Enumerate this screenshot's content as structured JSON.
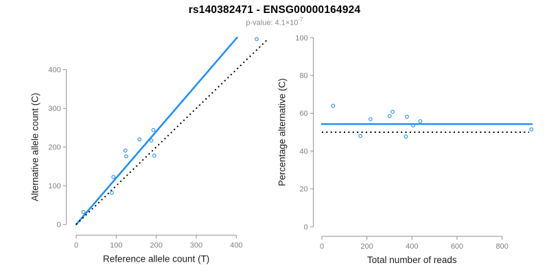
{
  "header": {
    "title": "rs140382471 - ENSG00000164924",
    "subtitle_base": "p-value: 4.1×10",
    "subtitle_exponent": "-7"
  },
  "colors": {
    "accent_blue": "#1E90FF",
    "axis_gray": "#909090",
    "tick_label_gray": "#7f7f7f",
    "subtitle_gray": "#8a8a8a",
    "line_black": "#000000"
  },
  "chart_data": [
    {
      "type": "scatter",
      "panel": "left",
      "xlabel": "Reference allele count (T)",
      "ylabel": "Alternative allele count (C)",
      "xticks": [
        0,
        100,
        200,
        300,
        400
      ],
      "yticks": [
        0,
        100,
        200,
        300,
        400
      ],
      "xlim": [
        -20,
        478
      ],
      "ylim": [
        -12,
        500
      ],
      "grid": false,
      "points": [
        [
          18,
          32
        ],
        [
          89,
          82
        ],
        [
          93,
          123
        ],
        [
          123,
          191
        ],
        [
          125,
          176
        ],
        [
          158,
          220
        ],
        [
          188,
          217
        ],
        [
          193,
          244
        ],
        [
          195,
          178
        ],
        [
          451,
          479
        ]
      ],
      "lines": [
        {
          "name": "regression-line",
          "style": "solid",
          "color": "blue",
          "x1": 0,
          "y1": 0,
          "x2": 402,
          "y2": 483
        },
        {
          "name": "identity-line",
          "style": "dotted",
          "color": "black",
          "x1": 0,
          "y1": 0,
          "x2": 477,
          "y2": 477
        }
      ]
    },
    {
      "type": "scatter",
      "panel": "right",
      "xlabel": "Total number of reads",
      "ylabel": "Percentage alternative (C)",
      "xticks": [
        0,
        200,
        400,
        600,
        800
      ],
      "yticks": [
        0,
        20,
        40,
        60,
        80,
        100
      ],
      "xlim": [
        -35,
        965
      ],
      "ylim": [
        -5,
        105
      ],
      "grid": false,
      "points": [
        [
          50,
          64
        ],
        [
          171,
          48
        ],
        [
          216,
          56.9
        ],
        [
          314,
          60.8
        ],
        [
          301,
          58.5
        ],
        [
          378,
          58.2
        ],
        [
          405,
          53.6
        ],
        [
          437,
          55.8
        ],
        [
          373,
          47.7
        ],
        [
          930,
          51.5
        ]
      ],
      "lines": [
        {
          "name": "mean-percentage-line",
          "style": "solid",
          "color": "blue",
          "x1": 0,
          "y1": 54.3,
          "x2": 932,
          "y2": 54.3
        },
        {
          "name": "expected-percentage-line",
          "style": "dotted",
          "color": "black",
          "x1": 0,
          "y1": 50,
          "x2": 920,
          "y2": 50
        }
      ]
    }
  ]
}
